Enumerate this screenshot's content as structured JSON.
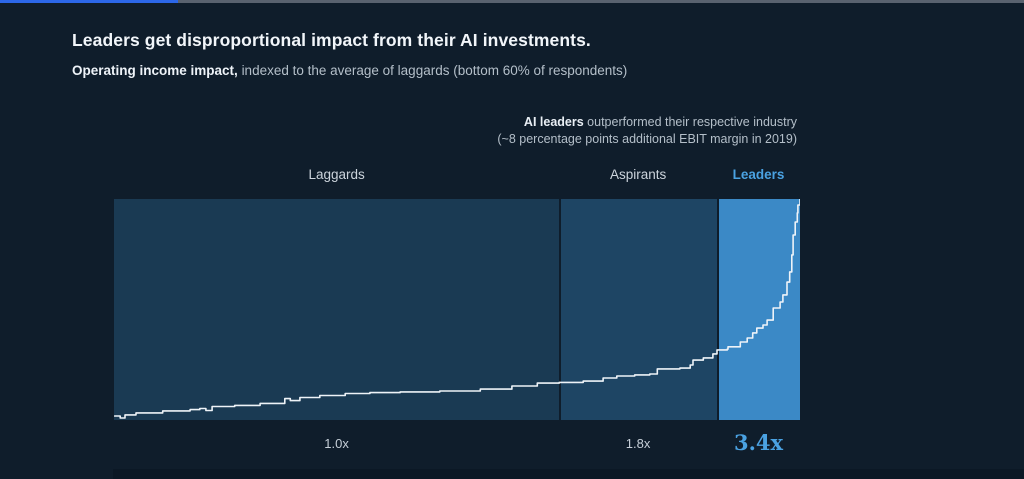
{
  "header": {
    "title": "Leaders get disproportional impact from their AI investments.",
    "subtitle_bold": "Operating income impact,",
    "subtitle_rest": "indexed to the average of laggards (bottom 60% of respondents)"
  },
  "annotation": {
    "bold": "AI leaders",
    "line1_rest": "outperformed their respective industry",
    "line2": "(~8 percentage points additional EBIT margin in 2019)"
  },
  "top_bar": {
    "fill_color": "#2c67e8",
    "track_color": "#59626f"
  },
  "colors": {
    "page_background": "#0f1d2b",
    "accent_blue": "#4aa2e2"
  },
  "chart_data": {
    "type": "line",
    "title": "Operating income impact, indexed to the average of laggards (bottom 60% of respondents)",
    "style": "sorted step curve of respondents, no axes shown, y normalized 0 (bottom) to 1 (top of plot)",
    "segments": [
      {
        "label": "Laggards",
        "value_label": "1.0x",
        "x_start": 0.0,
        "x_end": 0.649,
        "color": "#1a3a53",
        "label_color": "#ccd4dc",
        "highlight": false
      },
      {
        "label": "Aspirants",
        "value_label": "1.8x",
        "x_start": 0.649,
        "x_end": 0.879,
        "color": "#1e4564",
        "label_color": "#ccd4dc",
        "highlight": false
      },
      {
        "label": "Leaders",
        "value_label": "3.4x",
        "x_start": 0.879,
        "x_end": 1.0,
        "color": "#3b89c6",
        "label_color": "#4aa2e2",
        "highlight": true
      }
    ],
    "curve": {
      "color": "#eef3f8",
      "points": [
        [
          0.001,
          0.018
        ],
        [
          0.009,
          0.009
        ],
        [
          0.016,
          0.023
        ],
        [
          0.032,
          0.032
        ],
        [
          0.071,
          0.041
        ],
        [
          0.111,
          0.047
        ],
        [
          0.125,
          0.052
        ],
        [
          0.134,
          0.043
        ],
        [
          0.143,
          0.061
        ],
        [
          0.176,
          0.066
        ],
        [
          0.213,
          0.075
        ],
        [
          0.249,
          0.097
        ],
        [
          0.257,
          0.088
        ],
        [
          0.271,
          0.102
        ],
        [
          0.3,
          0.111
        ],
        [
          0.337,
          0.12
        ],
        [
          0.373,
          0.124
        ],
        [
          0.417,
          0.127
        ],
        [
          0.475,
          0.131
        ],
        [
          0.534,
          0.14
        ],
        [
          0.58,
          0.154
        ],
        [
          0.617,
          0.167
        ],
        [
          0.649,
          0.17
        ],
        [
          0.684,
          0.176
        ],
        [
          0.713,
          0.19
        ],
        [
          0.733,
          0.199
        ],
        [
          0.759,
          0.204
        ],
        [
          0.781,
          0.208
        ],
        [
          0.792,
          0.231
        ],
        [
          0.825,
          0.235
        ],
        [
          0.84,
          0.249
        ],
        [
          0.844,
          0.271
        ],
        [
          0.859,
          0.281
        ],
        [
          0.873,
          0.299
        ],
        [
          0.879,
          0.317
        ],
        [
          0.894,
          0.321
        ],
        [
          0.895,
          0.331
        ],
        [
          0.913,
          0.353
        ],
        [
          0.923,
          0.371
        ],
        [
          0.931,
          0.394
        ],
        [
          0.937,
          0.416
        ],
        [
          0.946,
          0.43
        ],
        [
          0.952,
          0.452
        ],
        [
          0.961,
          0.507
        ],
        [
          0.971,
          0.534
        ],
        [
          0.975,
          0.566
        ],
        [
          0.981,
          0.624
        ],
        [
          0.985,
          0.67
        ],
        [
          0.988,
          0.747
        ],
        [
          0.99,
          0.837
        ],
        [
          0.993,
          0.896
        ],
        [
          0.996,
          0.937
        ],
        [
          0.997,
          0.973
        ],
        [
          1.0,
          1.0
        ]
      ]
    }
  }
}
